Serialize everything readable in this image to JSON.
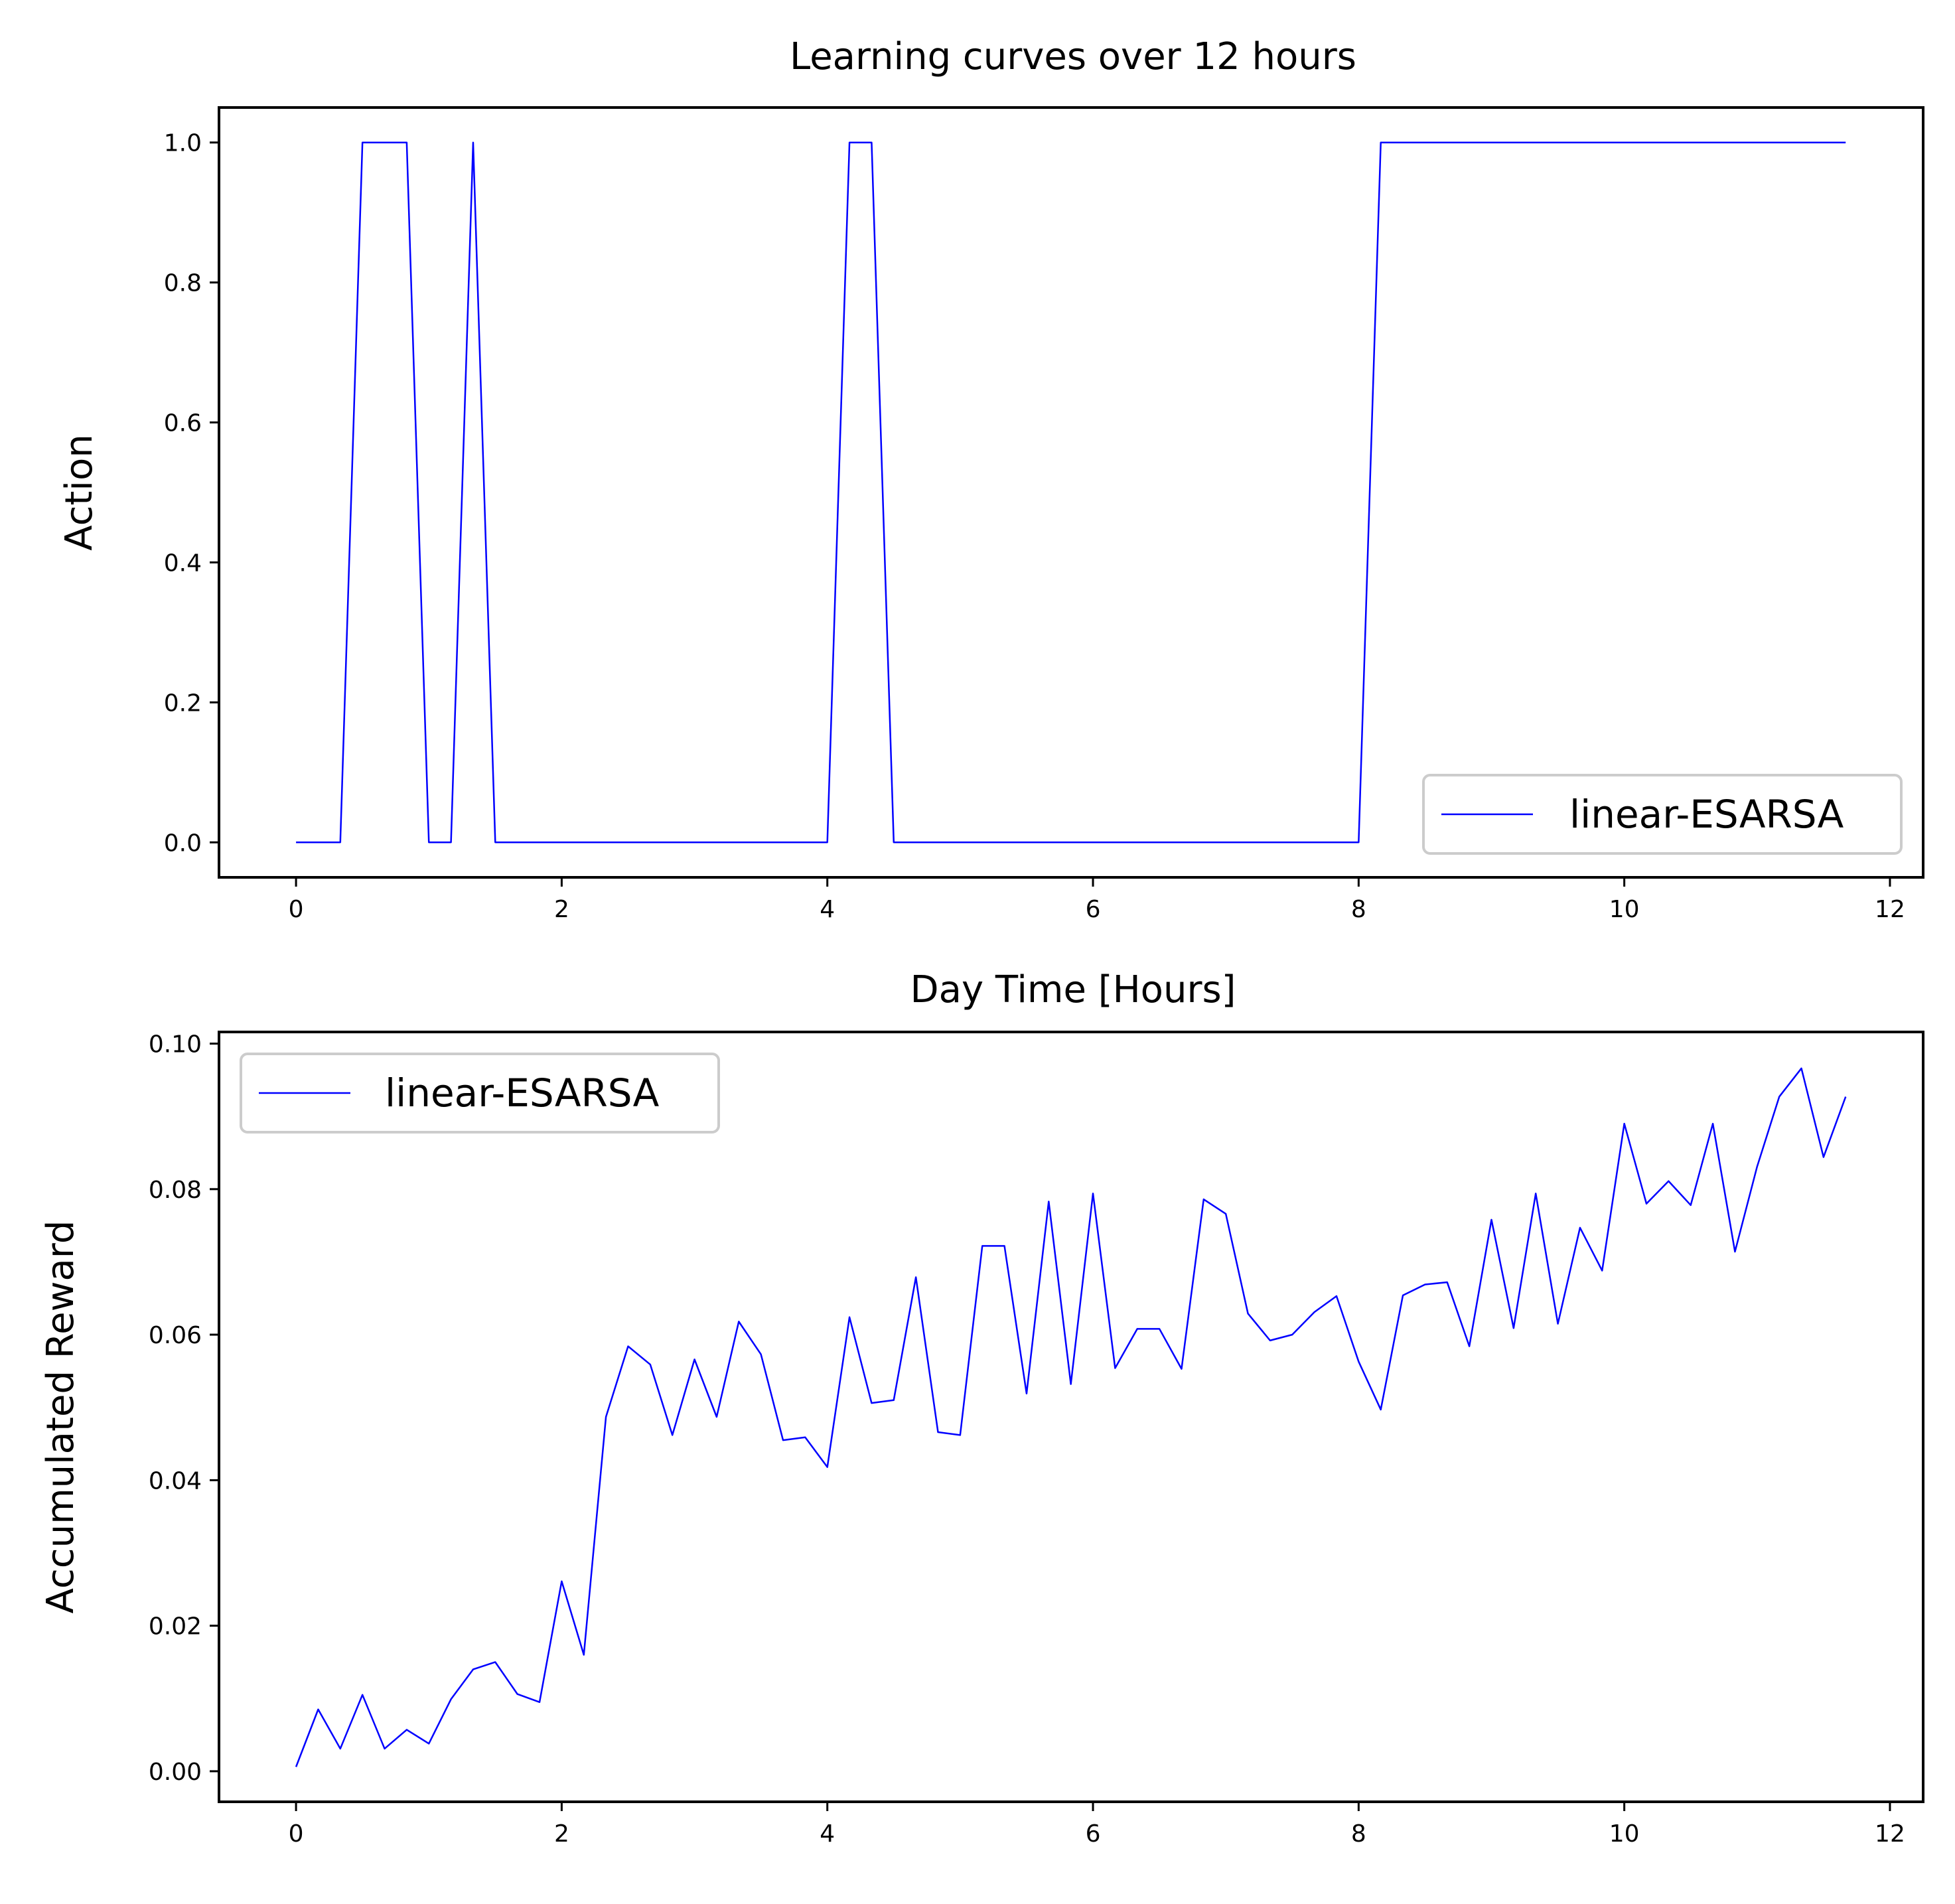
{
  "figure": {
    "title": "Learning curves over 12 hours",
    "colors": {
      "series": "#0000ff",
      "axes": "#000000",
      "legend_border": "#cccccc",
      "background": "#ffffff"
    }
  },
  "chart_data": [
    {
      "type": "line",
      "title": "Learning curves over 12 hours",
      "xlabel": "Day Time [Hours]",
      "ylabel": "Action",
      "xlim": [
        -0.58,
        12.25
      ],
      "ylim": [
        -0.05,
        1.05
      ],
      "xticks": [
        0,
        2,
        4,
        6,
        8,
        10,
        12
      ],
      "xtick_labels": [
        "0",
        "2",
        "4",
        "6",
        "8",
        "10",
        "12"
      ],
      "yticks": [
        0.0,
        0.2,
        0.4,
        0.6,
        0.8,
        1.0
      ],
      "ytick_labels": [
        "0.0",
        "0.2",
        "0.4",
        "0.6",
        "0.8",
        "1.0"
      ],
      "grid": false,
      "legend": {
        "position": "lower right",
        "entries": [
          "linear-ESARSA"
        ]
      },
      "series": [
        {
          "name": "linear-ESARSA",
          "color": "#0000ff",
          "x": [
            0,
            0.1667,
            0.3333,
            0.5,
            0.6667,
            0.8333,
            1.0,
            1.1667,
            1.3333,
            1.5,
            1.6667,
            1.8333,
            2.0,
            2.1667,
            2.3333,
            2.5,
            2.6667,
            2.8333,
            3.0,
            3.1667,
            3.3333,
            3.5,
            3.6667,
            3.8333,
            4.0,
            4.1667,
            4.3333,
            4.5,
            4.6667,
            4.8333,
            5.0,
            5.1667,
            5.3333,
            5.5,
            5.6667,
            5.8333,
            6.0,
            6.1667,
            6.3333,
            6.5,
            6.6667,
            6.8333,
            7.0,
            7.1667,
            7.3333,
            7.5,
            7.6667,
            7.8333,
            8.0,
            8.1667,
            8.3333,
            8.5,
            8.6667,
            8.8333,
            9.0,
            9.1667,
            9.3333,
            9.5,
            9.6667,
            9.8333,
            10.0,
            10.1667,
            10.3333,
            10.5,
            10.6667,
            10.8333,
            11.0,
            11.1667,
            11.3333,
            11.5,
            11.6667
          ],
          "y": [
            0,
            0,
            0,
            1,
            1,
            1,
            0,
            0,
            1,
            0,
            0,
            0,
            0,
            0,
            0,
            0,
            0,
            0,
            0,
            0,
            0,
            0,
            0,
            0,
            0,
            1,
            1,
            0,
            0,
            0,
            0,
            0,
            0,
            0,
            0,
            0,
            0,
            0,
            0,
            0,
            0,
            0,
            0,
            0,
            0,
            0,
            0,
            0,
            0,
            1,
            1,
            1,
            1,
            1,
            1,
            1,
            1,
            1,
            1,
            1,
            1,
            1,
            1,
            1,
            1,
            1,
            1,
            1,
            1,
            1,
            1
          ]
        }
      ]
    },
    {
      "type": "line",
      "title": "",
      "xlabel": "",
      "ylabel": "Accumulated Reward",
      "xlim": [
        -0.58,
        12.25
      ],
      "ylim": [
        -0.0042,
        0.1016
      ],
      "xticks": [
        0,
        2,
        4,
        6,
        8,
        10,
        12
      ],
      "xtick_labels": [
        "0",
        "2",
        "4",
        "6",
        "8",
        "10",
        "12"
      ],
      "yticks": [
        0.0,
        0.02,
        0.04,
        0.06,
        0.08,
        0.1
      ],
      "ytick_labels": [
        "0.00",
        "0.02",
        "0.04",
        "0.06",
        "0.08",
        "0.10"
      ],
      "grid": false,
      "legend": {
        "position": "upper left",
        "entries": [
          "linear-ESARSA"
        ]
      },
      "series": [
        {
          "name": "linear-ESARSA",
          "color": "#0000ff",
          "x": [
            0,
            0.1667,
            0.3333,
            0.5,
            0.6667,
            0.8333,
            1.0,
            1.1667,
            1.3333,
            1.5,
            1.6667,
            1.8333,
            2.0,
            2.1667,
            2.3333,
            2.5,
            2.6667,
            2.8333,
            3.0,
            3.1667,
            3.3333,
            3.5,
            3.6667,
            3.8333,
            4.0,
            4.1667,
            4.3333,
            4.5,
            4.6667,
            4.8333,
            5.0,
            5.1667,
            5.3333,
            5.5,
            5.6667,
            5.8333,
            6.0,
            6.1667,
            6.3333,
            6.5,
            6.6667,
            6.8333,
            7.0,
            7.1667,
            7.3333,
            7.5,
            7.6667,
            7.8333,
            8.0,
            8.1667,
            8.3333,
            8.5,
            8.6667,
            8.8333,
            9.0,
            9.1667,
            9.3333,
            9.5,
            9.6667,
            9.8333,
            10.0,
            10.1667,
            10.3333,
            10.5,
            10.6667,
            10.8333,
            11.0,
            11.1667,
            11.3333,
            11.5,
            11.6667
          ],
          "y": [
            0.0006,
            0.0085,
            0.0031,
            0.0105,
            0.0031,
            0.0057,
            0.0038,
            0.0099,
            0.014,
            0.015,
            0.0106,
            0.0095,
            0.0261,
            0.016,
            0.0487,
            0.0584,
            0.0559,
            0.0462,
            0.0566,
            0.0487,
            0.0618,
            0.0573,
            0.0455,
            0.0459,
            0.0418,
            0.0624,
            0.0506,
            0.051,
            0.0679,
            0.0466,
            0.0462,
            0.0722,
            0.0722,
            0.0519,
            0.0783,
            0.0532,
            0.0794,
            0.0554,
            0.0608,
            0.0608,
            0.0553,
            0.0786,
            0.0766,
            0.0629,
            0.0592,
            0.06,
            0.0631,
            0.0653,
            0.0563,
            0.0497,
            0.0654,
            0.0669,
            0.0672,
            0.0584,
            0.0758,
            0.0609,
            0.0794,
            0.0615,
            0.0747,
            0.0688,
            0.089,
            0.078,
            0.0811,
            0.0778,
            0.089,
            0.0714,
            0.0831,
            0.0927,
            0.0966,
            0.0844,
            0.0927
          ]
        }
      ]
    }
  ]
}
